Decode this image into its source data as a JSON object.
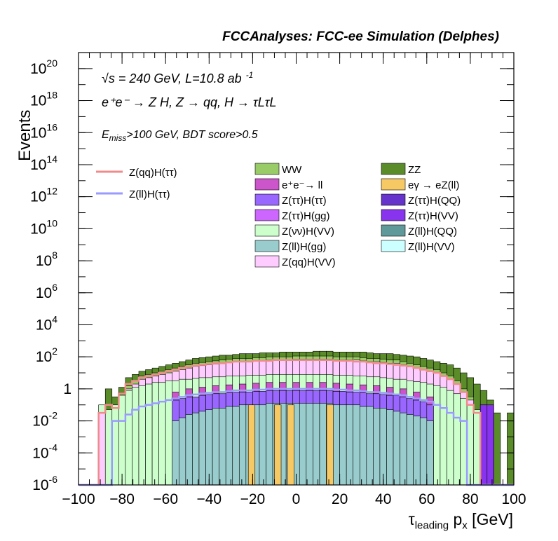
{
  "header": "FCCAnalyses: FCC-ee Simulation (Delphes)",
  "annotations": {
    "energy": "√s = 240 GeV, L=10.8 ab",
    "energy_sup": "-1",
    "process": "e⁺e⁻ → Z H, Z → qq, H → τLτL",
    "cut_prefix": "E",
    "cut_sub": "miss",
    "cut_suffix": ">100 GeV, BDT score>0.5"
  },
  "chart_data": {
    "type": "bar",
    "stacked": true,
    "log_y": true,
    "xlabel_main": "τ",
    "xlabel_sub1": "leading",
    "xlabel_mid": " p",
    "xlabel_sub2": "x",
    "xlabel_unit": " [GeV]",
    "ylabel": "Events",
    "xlim": [
      -100,
      100
    ],
    "ylim_exponent": [
      -6,
      21
    ],
    "x_ticks": [
      -100,
      -80,
      -60,
      -40,
      -20,
      0,
      20,
      40,
      60,
      80,
      100
    ],
    "x_tick_labels": [
      "−100",
      "−80",
      "−60",
      "−40",
      "−20",
      "0",
      "20",
      "40",
      "60",
      "80",
      "100"
    ],
    "y_ticks_exp": [
      -6,
      -4,
      -2,
      0,
      2,
      4,
      6,
      8,
      10,
      12,
      14,
      16,
      18,
      20
    ],
    "y_tick_labels": [
      {
        "base": "10",
        "exp": "-6"
      },
      {
        "base": "10",
        "exp": "-4"
      },
      {
        "base": "10",
        "exp": "-2"
      },
      {
        "base": "1",
        "exp": ""
      },
      {
        "base": "10",
        "exp": "2"
      },
      {
        "base": "10",
        "exp": "4"
      },
      {
        "base": "10",
        "exp": "6"
      },
      {
        "base": "10",
        "exp": "8"
      },
      {
        "base": "10",
        "exp": "10"
      },
      {
        "base": "10",
        "exp": "12"
      },
      {
        "base": "10",
        "exp": "14"
      },
      {
        "base": "10",
        "exp": "16"
      },
      {
        "base": "10",
        "exp": "18"
      },
      {
        "base": "10",
        "exp": "20"
      }
    ],
    "stack_top_log10": [
      -6,
      -6,
      -6,
      -1.5,
      0,
      -0.5,
      0.1,
      0.7,
      0.9,
      1.1,
      1.2,
      1.3,
      1.4,
      1.5,
      1.6,
      1.7,
      1.8,
      1.9,
      1.95,
      2.0,
      2.05,
      2.1,
      2.1,
      2.15,
      2.2,
      2.2,
      2.2,
      2.25,
      2.25,
      2.25,
      2.3,
      2.3,
      2.3,
      2.3,
      2.3,
      2.35,
      2.35,
      2.35,
      2.3,
      2.3,
      2.3,
      2.3,
      2.3,
      2.25,
      2.2,
      2.2,
      2.2,
      2.15,
      2.1,
      2.05,
      2.0,
      1.9,
      1.8,
      1.7,
      1.6,
      1.5,
      1.3,
      1.0,
      0.7,
      0.3,
      -0.1,
      -0.7,
      -1.5,
      -6,
      -1.5
    ],
    "ww_log10": [
      -6,
      -6,
      -6,
      -6,
      -6,
      -6,
      -0.5,
      0.2,
      0.5,
      0.8,
      0.9,
      1.0,
      1.1,
      1.2,
      1.3,
      1.4,
      1.5,
      1.6,
      1.65,
      1.7,
      1.75,
      1.8,
      1.85,
      1.9,
      1.9,
      1.9,
      1.95,
      1.95,
      2.0,
      2.0,
      2.0,
      2.0,
      2.05,
      2.05,
      2.05,
      2.05,
      2.05,
      2.05,
      2.0,
      2.0,
      2.0,
      2.0,
      1.95,
      1.9,
      1.9,
      1.85,
      1.8,
      1.8,
      1.7,
      1.6,
      1.5,
      1.4,
      1.3,
      1.2,
      1.0,
      0.8,
      0.5,
      0.0,
      -0.5,
      -6,
      -6,
      -6,
      -6,
      -6,
      -6
    ],
    "nn_top_log10": [
      -6,
      -6,
      -6,
      -1.0,
      -1.3,
      -1.0,
      -0.4,
      -0.1,
      0.1,
      0.2,
      0.3,
      0.4,
      0.4,
      0.5,
      0.5,
      0.6,
      0.6,
      0.65,
      0.7,
      0.7,
      0.75,
      0.75,
      0.8,
      0.8,
      0.8,
      0.85,
      0.85,
      0.85,
      0.9,
      0.9,
      0.9,
      0.9,
      0.9,
      0.9,
      0.9,
      0.9,
      0.9,
      0.9,
      0.85,
      0.85,
      0.85,
      0.8,
      0.8,
      0.75,
      0.75,
      0.7,
      0.65,
      0.6,
      0.6,
      0.5,
      0.45,
      0.4,
      0.3,
      0.2,
      0.1,
      -0.1,
      -0.3,
      -0.6,
      -1.0,
      -1.3,
      -1.0,
      -6,
      -6,
      -6,
      -6
    ],
    "purple_top_log10": [
      -6,
      -6,
      -6,
      -6,
      -6,
      -6,
      -6,
      -6,
      -6,
      -6,
      -6,
      -6,
      -6,
      -6,
      -0.7,
      -0.6,
      -0.5,
      -0.5,
      -0.4,
      -0.35,
      -0.3,
      -0.3,
      -0.25,
      -0.2,
      -0.2,
      -0.2,
      -0.15,
      -0.15,
      -0.1,
      -0.1,
      -0.1,
      -0.1,
      -0.1,
      -0.1,
      -0.1,
      -0.1,
      -0.1,
      -0.1,
      -0.15,
      -0.15,
      -0.2,
      -0.2,
      -0.25,
      -0.3,
      -0.3,
      -0.35,
      -0.4,
      -0.4,
      -0.5,
      -0.6,
      -0.7,
      -0.8,
      -1.0,
      -6,
      -6,
      -6,
      -6,
      -6,
      -6,
      -6,
      -6,
      -6,
      -6,
      -6,
      -6
    ],
    "teal_top_log10": [
      -6,
      -6,
      -6,
      -6,
      -6,
      -6,
      -6,
      -6,
      -6,
      -6,
      -6,
      -6,
      -6,
      -6,
      -2.0,
      -1.8,
      -1.6,
      -1.5,
      -1.4,
      -1.3,
      -1.2,
      -1.2,
      -1.1,
      -1.1,
      -1.0,
      -1.0,
      -1.0,
      -1.0,
      -0.9,
      -0.9,
      -0.9,
      -0.9,
      -0.9,
      -0.9,
      -0.9,
      -0.9,
      -0.9,
      -0.9,
      -1.0,
      -1.0,
      -1.0,
      -1.0,
      -1.1,
      -1.1,
      -1.2,
      -1.2,
      -1.3,
      -1.4,
      -1.5,
      -1.6,
      -1.7,
      -1.8,
      -2.0,
      -6,
      -6,
      -6,
      -6,
      -6,
      -6,
      -6,
      -6,
      -6,
      -6,
      -6,
      -6
    ],
    "egamma_bins_x": [
      -22,
      -10,
      -4,
      14
    ],
    "egamma_top_log10": -1.0,
    "signal_zqq_log10": [
      -6,
      -6,
      -6,
      -1.5,
      -1.0,
      -1.2,
      -0.3,
      0.3,
      0.5,
      0.7,
      0.8,
      0.9,
      1.0,
      1.1,
      1.2,
      1.3,
      1.4,
      1.45,
      1.5,
      1.55,
      1.6,
      1.6,
      1.65,
      1.7,
      1.7,
      1.7,
      1.75,
      1.75,
      1.75,
      1.8,
      1.8,
      1.8,
      1.8,
      1.8,
      1.8,
      1.8,
      1.8,
      1.8,
      1.75,
      1.75,
      1.75,
      1.7,
      1.7,
      1.65,
      1.6,
      1.6,
      1.55,
      1.5,
      1.45,
      1.4,
      1.3,
      1.2,
      1.1,
      1.0,
      0.8,
      0.6,
      0.3,
      -0.2,
      -1.0,
      -1.5,
      -6,
      -6,
      -6,
      -6,
      -6
    ],
    "signal_zll_log10": [
      -6,
      -6,
      -6,
      -6,
      -6,
      -2.0,
      -2.0,
      -1.6,
      -1.3,
      -1.1,
      -1.0,
      -0.9,
      -0.8,
      -0.7,
      -0.6,
      -0.5,
      -0.4,
      -0.35,
      -0.3,
      -0.25,
      -0.2,
      -0.2,
      -0.15,
      -0.1,
      -0.1,
      -0.1,
      -0.05,
      -0.05,
      0.0,
      0.0,
      0.0,
      0.0,
      0.0,
      0.0,
      0.0,
      0.0,
      0.0,
      0.0,
      -0.05,
      -0.05,
      -0.1,
      -0.1,
      -0.15,
      -0.2,
      -0.2,
      -0.25,
      -0.3,
      -0.35,
      -0.4,
      -0.5,
      -0.6,
      -0.7,
      -0.8,
      -1.0,
      -1.2,
      -1.5,
      -1.8,
      -2.0,
      -6,
      -6,
      -6,
      -6,
      -6,
      -6,
      -6
    ],
    "legend_lines": [
      {
        "label": "Z(qq)H(ττ)",
        "color": "#f08b8b"
      },
      {
        "label": "Z(ll)H(ττ)",
        "color": "#9a9aff"
      }
    ],
    "legend_boxes": [
      {
        "label": "WW",
        "color": "#99cc66"
      },
      {
        "label": "ZZ",
        "color": "#5b8c2a"
      },
      {
        "label": "e⁺e⁻→ ll",
        "color": "#cc55cc"
      },
      {
        "label": "eγ → eZ(ll)",
        "color": "#f7c964"
      },
      {
        "label": "Z(ττ)H(ττ)",
        "color": "#9966ff"
      },
      {
        "label": "Z(ττ)H(QQ)",
        "color": "#6633cc"
      },
      {
        "label": "Z(ττ)H(gg)",
        "color": "#cc66ff"
      },
      {
        "label": "Z(ττ)H(VV)",
        "color": "#8833ee"
      },
      {
        "label": "Z(νν)H(VV)",
        "color": "#ccffcc"
      },
      {
        "label": "Z(ll)H(QQ)",
        "color": "#5f9999"
      },
      {
        "label": "Z(ll)H(gg)",
        "color": "#99cccc"
      },
      {
        "label": "Z(ll)H(VV)",
        "color": "#ccffff"
      },
      {
        "label": "Z(qq)H(VV)",
        "color": "#ffccff"
      }
    ],
    "colors": {
      "zz": "#5b8c2a",
      "ww": "#99cc66",
      "eell": "#cc55cc",
      "znn": "#ccffcc",
      "zllgg": "#99cccc",
      "egamma": "#f7c964",
      "zqqvv": "#ffccff",
      "purple": "#9966ff",
      "zttqq": "#6633cc",
      "zttgg": "#cc66ff",
      "zttvv": "#8833ee"
    }
  }
}
